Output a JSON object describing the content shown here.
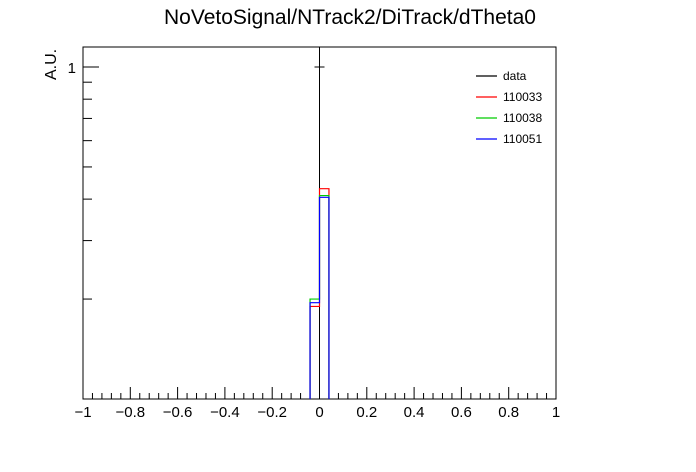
{
  "chart_data": {
    "type": "histogram",
    "title": "NoVetoSignal/NTrack2/DiTrack/dTheta0",
    "xlabel": "",
    "ylabel": "A.U.",
    "xlim": [
      -1,
      1
    ],
    "y_scale": "log",
    "x_ticks": [
      {
        "value": -1,
        "label": "−1"
      },
      {
        "value": -0.8,
        "label": "−0.8"
      },
      {
        "value": -0.6,
        "label": "−0.6"
      },
      {
        "value": -0.4,
        "label": "−0.4"
      },
      {
        "value": -0.2,
        "label": "−0.2"
      },
      {
        "value": 0,
        "label": "0"
      },
      {
        "value": 0.2,
        "label": "0.2"
      },
      {
        "value": 0.4,
        "label": "0.4"
      },
      {
        "value": 0.6,
        "label": "0.6"
      },
      {
        "value": 0.8,
        "label": "0.8"
      },
      {
        "value": 1,
        "label": "1"
      }
    ],
    "y_ticks": [
      {
        "value": 1,
        "label": "1"
      }
    ],
    "legend_position": "top-right",
    "series": [
      {
        "name": "data",
        "color": "#000000",
        "type": "marker",
        "x": [
          0
        ],
        "y": [
          1
        ]
      },
      {
        "name": "110033",
        "color": "#ff0000",
        "type": "hist",
        "bins": [
          {
            "lo": -0.04,
            "hi": 0,
            "y": 0.19
          },
          {
            "lo": 0,
            "hi": 0.04,
            "y": 0.43
          }
        ]
      },
      {
        "name": "110038",
        "color": "#00cc00",
        "type": "hist",
        "bins": [
          {
            "lo": -0.04,
            "hi": 0,
            "y": 0.2
          },
          {
            "lo": 0,
            "hi": 0.04,
            "y": 0.41
          }
        ]
      },
      {
        "name": "110051",
        "color": "#0000ff",
        "type": "hist",
        "bins": [
          {
            "lo": -0.04,
            "hi": 0,
            "y": 0.195
          },
          {
            "lo": 0,
            "hi": 0.04,
            "y": 0.405
          }
        ]
      }
    ]
  }
}
